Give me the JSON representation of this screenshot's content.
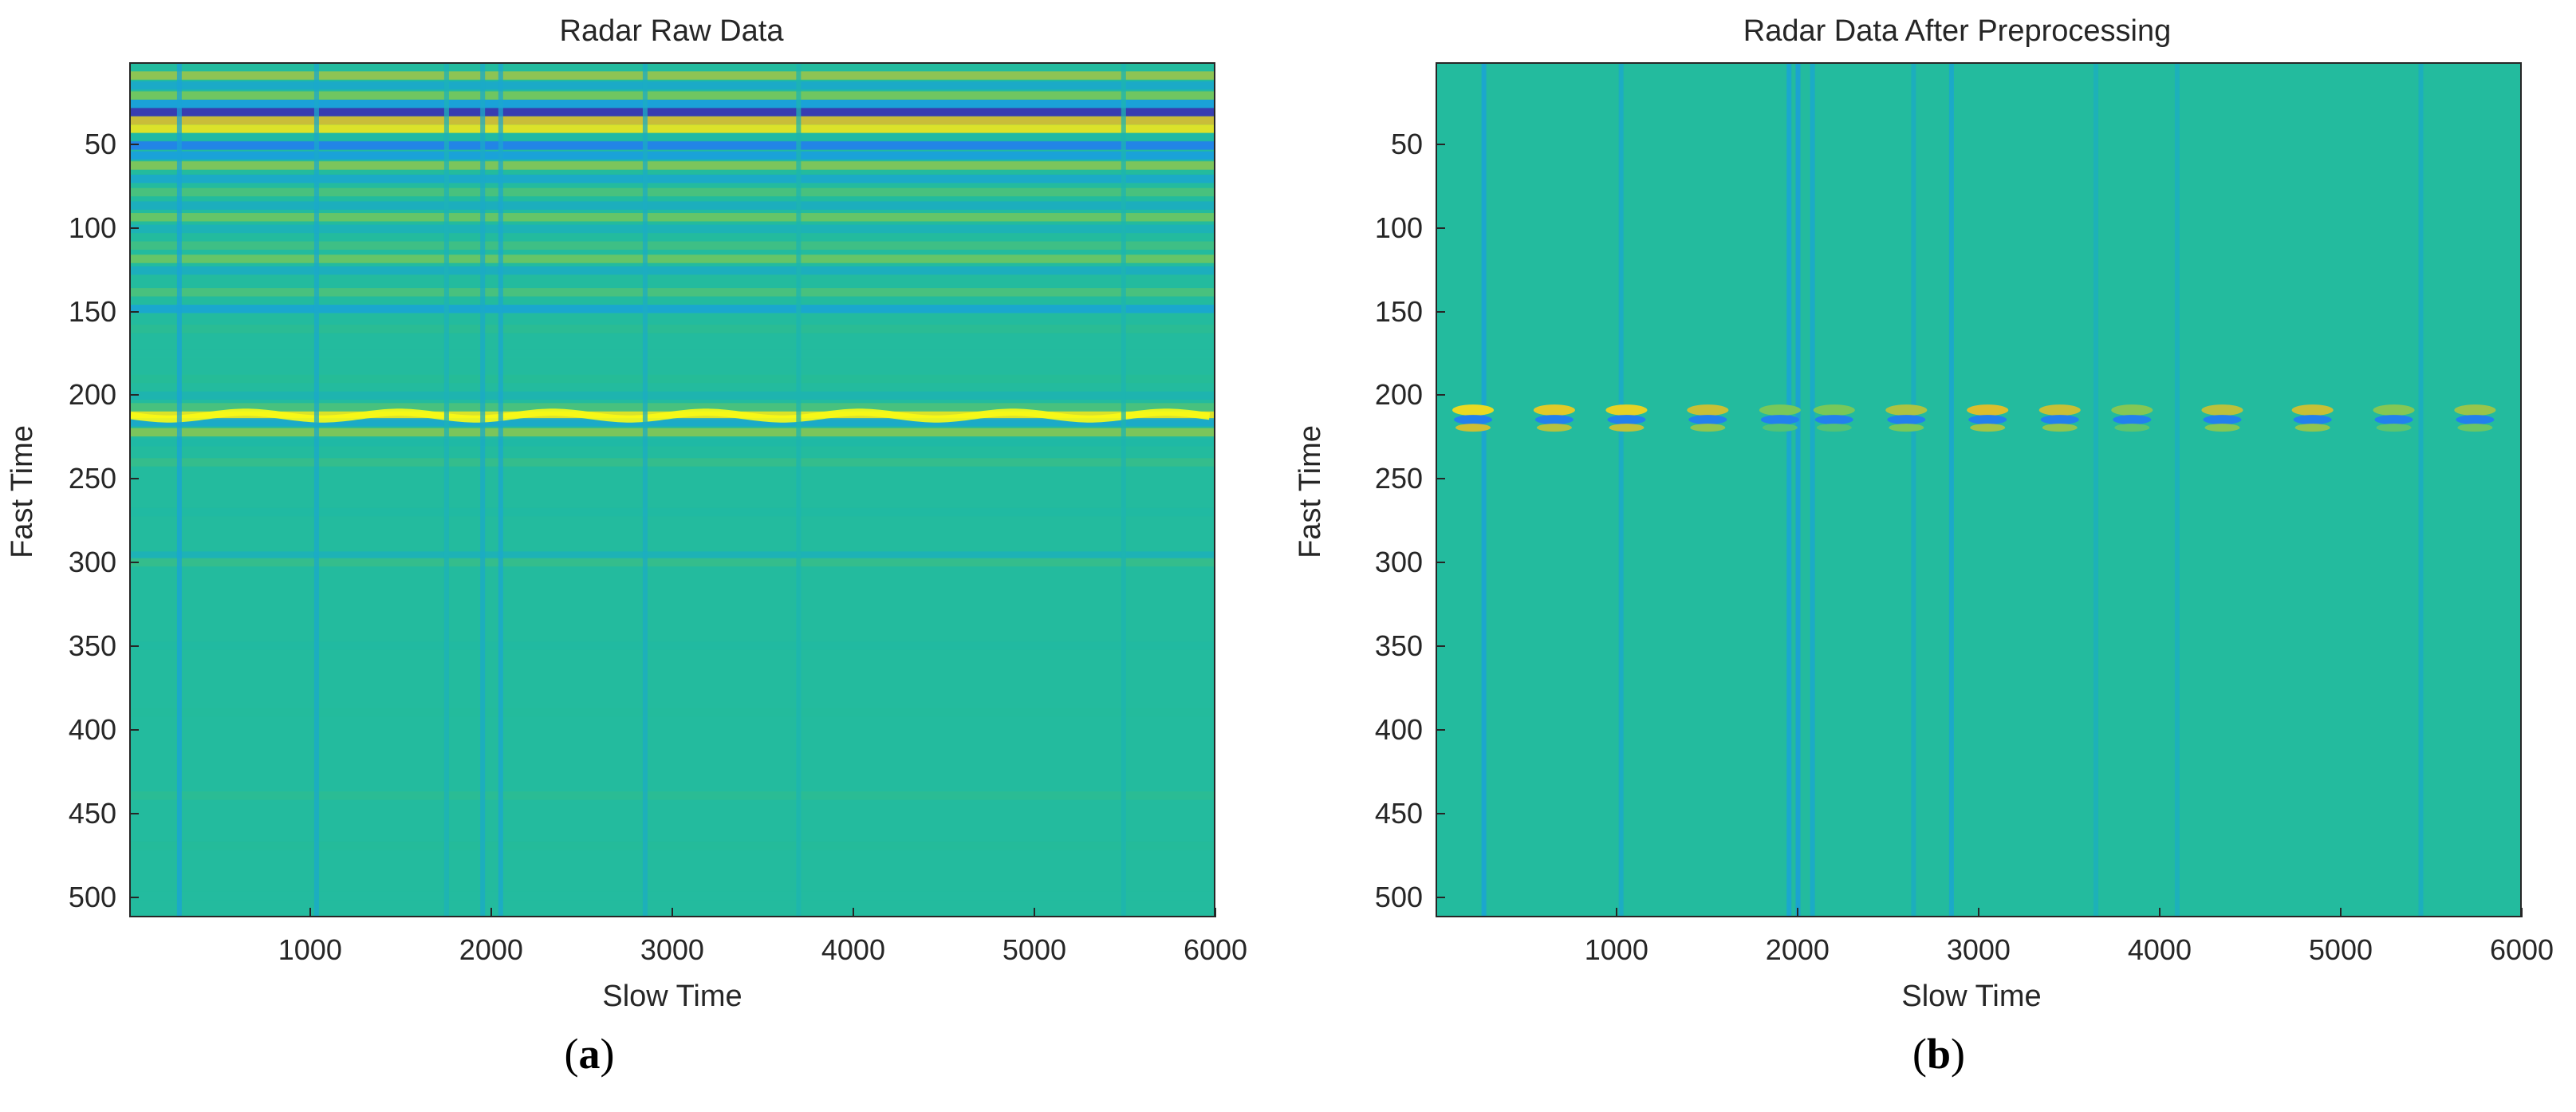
{
  "chart_data": [
    {
      "type": "heatmap",
      "title": "Radar Raw Data",
      "xlabel": "Slow Time",
      "ylabel": "Fast Time",
      "xlim": [
        1,
        6000
      ],
      "ylim": [
        1,
        512
      ],
      "y_reversed": true,
      "x_ticks": [
        1000,
        2000,
        3000,
        4000,
        5000,
        6000
      ],
      "y_ticks": [
        50,
        100,
        150,
        200,
        250,
        300,
        350,
        400,
        450,
        500
      ],
      "colormap": "parula",
      "caption_letter": "a",
      "horizontal_bands": [
        {
          "fast_time": 8,
          "level": 0.75
        },
        {
          "fast_time": 14,
          "level": 0.35
        },
        {
          "fast_time": 20,
          "level": 0.7
        },
        {
          "fast_time": 25,
          "level": 0.3
        },
        {
          "fast_time": 30,
          "level": 0.02
        },
        {
          "fast_time": 35,
          "level": 0.85
        },
        {
          "fast_time": 40,
          "level": 0.95
        },
        {
          "fast_time": 45,
          "level": 0.45
        },
        {
          "fast_time": 50,
          "level": 0.2
        },
        {
          "fast_time": 56,
          "level": 0.3
        },
        {
          "fast_time": 62,
          "level": 0.72
        },
        {
          "fast_time": 70,
          "level": 0.35
        },
        {
          "fast_time": 78,
          "level": 0.62
        },
        {
          "fast_time": 86,
          "level": 0.38
        },
        {
          "fast_time": 93,
          "level": 0.68
        },
        {
          "fast_time": 100,
          "level": 0.4
        },
        {
          "fast_time": 110,
          "level": 0.6
        },
        {
          "fast_time": 118,
          "level": 0.68
        },
        {
          "fast_time": 125,
          "level": 0.38
        },
        {
          "fast_time": 138,
          "level": 0.62
        },
        {
          "fast_time": 148,
          "level": 0.33
        },
        {
          "fast_time": 160,
          "level": 0.56
        },
        {
          "fast_time": 175,
          "level": 0.5
        },
        {
          "fast_time": 190,
          "level": 0.55
        },
        {
          "fast_time": 200,
          "level": 0.42
        },
        {
          "fast_time": 207,
          "level": 0.62
        },
        {
          "fast_time": 212,
          "level": 0.95
        },
        {
          "fast_time": 216,
          "level": 0.35
        },
        {
          "fast_time": 222,
          "level": 0.72
        },
        {
          "fast_time": 228,
          "level": 0.45
        },
        {
          "fast_time": 240,
          "level": 0.58
        },
        {
          "fast_time": 270,
          "level": 0.47
        },
        {
          "fast_time": 296,
          "level": 0.4
        },
        {
          "fast_time": 300,
          "level": 0.58
        },
        {
          "fast_time": 350,
          "level": 0.48
        },
        {
          "fast_time": 390,
          "level": 0.52
        },
        {
          "fast_time": 440,
          "level": 0.56
        },
        {
          "fast_time": 470,
          "level": 0.53
        },
        {
          "fast_time": 500,
          "level": 0.5
        }
      ],
      "vertical_streaks": [
        {
          "slow_time": 270,
          "level": 0.32
        },
        {
          "slow_time": 1030,
          "level": 0.35
        },
        {
          "slow_time": 1750,
          "level": 0.4
        },
        {
          "slow_time": 1950,
          "level": 0.36
        },
        {
          "slow_time": 2050,
          "level": 0.34
        },
        {
          "slow_time": 2850,
          "level": 0.37
        },
        {
          "slow_time": 3700,
          "level": 0.42
        },
        {
          "slow_time": 5500,
          "level": 0.42
        }
      ],
      "oscillating_band": {
        "fast_time": 212,
        "amplitude": 2,
        "period": 850
      }
    },
    {
      "type": "heatmap",
      "title": "Radar Data After Preprocessing",
      "xlabel": "Slow Time",
      "ylabel": "Fast Time",
      "xlim": [
        1,
        6000
      ],
      "ylim": [
        1,
        512
      ],
      "y_reversed": true,
      "x_ticks": [
        1000,
        2000,
        3000,
        4000,
        5000,
        6000
      ],
      "y_ticks": [
        50,
        100,
        150,
        200,
        250,
        300,
        350,
        400,
        450,
        500
      ],
      "colormap": "parula",
      "caption_letter": "b",
      "pulses": [
        {
          "slow_time": 200,
          "fast_time": 213,
          "level": 0.92
        },
        {
          "slow_time": 650,
          "fast_time": 213,
          "level": 0.88
        },
        {
          "slow_time": 1050,
          "fast_time": 213,
          "level": 0.9
        },
        {
          "slow_time": 1500,
          "fast_time": 213,
          "level": 0.82
        },
        {
          "slow_time": 1900,
          "fast_time": 213,
          "level": 0.7
        },
        {
          "slow_time": 2200,
          "fast_time": 213,
          "level": 0.7
        },
        {
          "slow_time": 2600,
          "fast_time": 213,
          "level": 0.78
        },
        {
          "slow_time": 3050,
          "fast_time": 213,
          "level": 0.85
        },
        {
          "slow_time": 3450,
          "fast_time": 213,
          "level": 0.82
        },
        {
          "slow_time": 3850,
          "fast_time": 213,
          "level": 0.72
        },
        {
          "slow_time": 4350,
          "fast_time": 213,
          "level": 0.8
        },
        {
          "slow_time": 4850,
          "fast_time": 213,
          "level": 0.82
        },
        {
          "slow_time": 5300,
          "fast_time": 213,
          "level": 0.72
        },
        {
          "slow_time": 5750,
          "fast_time": 213,
          "level": 0.75
        }
      ],
      "vertical_streaks": [
        {
          "slow_time": 260,
          "level": 0.3
        },
        {
          "slow_time": 1020,
          "level": 0.34
        },
        {
          "slow_time": 1950,
          "level": 0.3
        },
        {
          "slow_time": 2000,
          "level": 0.28
        },
        {
          "slow_time": 2080,
          "level": 0.33
        },
        {
          "slow_time": 2640,
          "level": 0.36
        },
        {
          "slow_time": 2850,
          "level": 0.32
        },
        {
          "slow_time": 3650,
          "level": 0.38
        },
        {
          "slow_time": 4100,
          "level": 0.37
        },
        {
          "slow_time": 5450,
          "level": 0.36
        }
      ]
    }
  ]
}
